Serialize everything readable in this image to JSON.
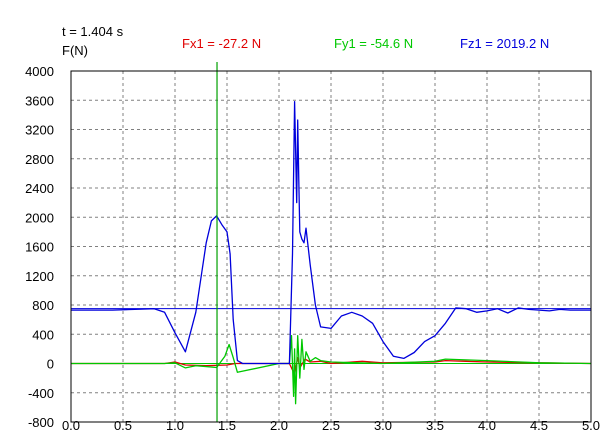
{
  "header": {
    "time_readout": "t = 1.404 s",
    "fx_readout": "Fx1 = -27.2 N",
    "fy_readout": "Fy1 = -54.6 N",
    "fz_readout": "Fz1 = 2019.2 N"
  },
  "colors": {
    "fx": "#e00000",
    "fy": "#00c800",
    "fz": "#0000dc",
    "grid": "#808080",
    "frame": "#000000",
    "cursor": "#00a000",
    "background": "#ffffff"
  },
  "chart_data": {
    "type": "line",
    "ylabel": "F(N)",
    "xlabel": "",
    "xlim": [
      0.0,
      5.0
    ],
    "ylim": [
      -800,
      4000
    ],
    "x_ticks": [
      0.0,
      0.5,
      1.0,
      1.5,
      2.0,
      2.5,
      3.0,
      3.5,
      4.0,
      4.5,
      5.0
    ],
    "x_tick_labels": [
      "0.0",
      "0.5",
      "1.0",
      "1.5",
      "2.0",
      "2.5",
      "3.0",
      "3.5",
      "4.0",
      "4.5",
      "5.0"
    ],
    "y_ticks": [
      -800,
      -400,
      0,
      400,
      800,
      1200,
      1600,
      2000,
      2400,
      2800,
      3200,
      3600,
      4000
    ],
    "y_tick_labels": [
      "-800",
      "-400",
      "0",
      "400",
      "800",
      "1200",
      "1600",
      "2000",
      "2400",
      "2800",
      "3200",
      "3600",
      "4000"
    ],
    "grid": true,
    "cursor_x": 1.404,
    "reference_lines": [
      {
        "y": 750,
        "color": "#0000dc"
      },
      {
        "y": 0,
        "color": "#00c800"
      }
    ],
    "series": [
      {
        "key": "fx",
        "x": [
          0.0,
          0.5,
          0.9,
          1.0,
          1.1,
          1.3,
          1.5,
          1.58,
          1.62,
          2.0,
          2.1,
          2.15,
          2.18,
          2.2,
          2.25,
          2.3,
          2.4,
          2.5,
          2.8,
          3.0,
          3.5,
          3.6,
          3.8,
          4.0,
          4.5,
          5.0
        ],
        "y": [
          0,
          0,
          0,
          20,
          -20,
          -30,
          -20,
          0,
          0,
          0,
          0,
          -150,
          80,
          -60,
          60,
          20,
          30,
          0,
          30,
          10,
          20,
          40,
          30,
          20,
          10,
          0
        ]
      },
      {
        "key": "fy",
        "x": [
          0.0,
          0.5,
          0.9,
          1.0,
          1.1,
          1.2,
          1.4,
          1.48,
          1.52,
          1.56,
          1.6,
          2.0,
          2.1,
          2.12,
          2.14,
          2.15,
          2.16,
          2.18,
          2.2,
          2.22,
          2.24,
          2.26,
          2.3,
          2.35,
          2.4,
          2.5,
          3.0,
          3.5,
          3.6,
          4.0,
          4.5,
          5.0
        ],
        "y": [
          0,
          0,
          0,
          10,
          -60,
          -30,
          -55,
          100,
          260,
          80,
          -120,
          0,
          0,
          380,
          -450,
          200,
          -550,
          380,
          -200,
          330,
          -80,
          160,
          30,
          80,
          40,
          20,
          0,
          30,
          60,
          40,
          10,
          0
        ]
      },
      {
        "key": "fz",
        "x": [
          0.0,
          0.4,
          0.8,
          0.9,
          1.0,
          1.1,
          1.2,
          1.3,
          1.35,
          1.4,
          1.45,
          1.5,
          1.53,
          1.56,
          1.6,
          1.65,
          2.1,
          2.13,
          2.15,
          2.17,
          2.18,
          2.19,
          2.2,
          2.22,
          2.24,
          2.26,
          2.3,
          2.35,
          2.4,
          2.5,
          2.6,
          2.7,
          2.8,
          2.9,
          3.0,
          3.1,
          3.2,
          3.3,
          3.4,
          3.5,
          3.6,
          3.7,
          3.8,
          3.9,
          4.0,
          4.1,
          4.2,
          4.3,
          4.4,
          4.5,
          4.6,
          4.7,
          4.8,
          4.9,
          5.0
        ],
        "y": [
          730,
          730,
          750,
          700,
          420,
          160,
          700,
          1650,
          1950,
          2020,
          1900,
          1800,
          1500,
          600,
          40,
          0,
          0,
          1500,
          3580,
          2200,
          3330,
          2500,
          1800,
          1700,
          1650,
          1850,
          1350,
          800,
          500,
          480,
          650,
          700,
          650,
          550,
          300,
          100,
          70,
          150,
          300,
          380,
          550,
          760,
          750,
          700,
          720,
          750,
          690,
          760,
          740,
          730,
          720,
          740,
          730,
          730,
          730
        ]
      }
    ]
  }
}
